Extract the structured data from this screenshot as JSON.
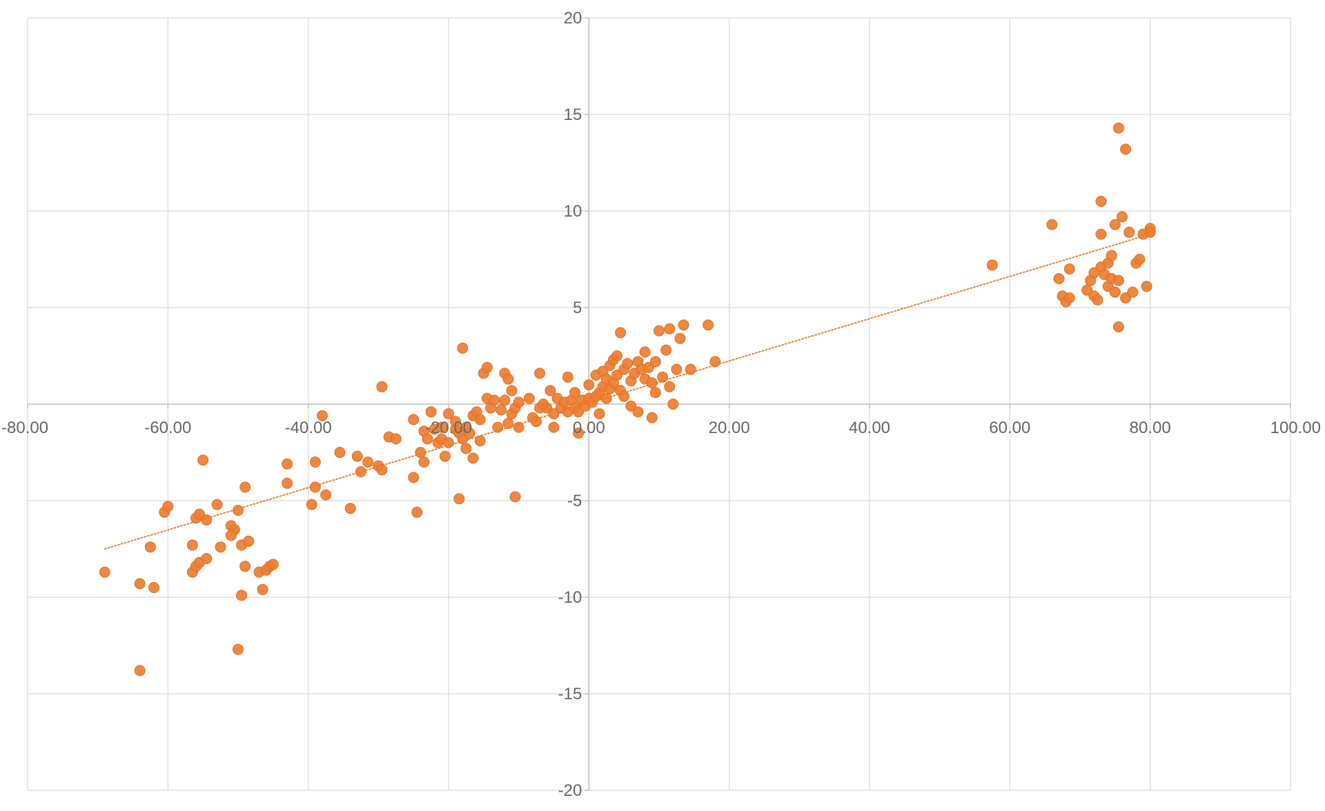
{
  "chart_data": {
    "type": "scatter",
    "title": "",
    "xlabel": "",
    "ylabel": "",
    "xlim": [
      -80,
      100
    ],
    "ylim": [
      -20,
      20
    ],
    "x_ticks": [
      -80,
      -60,
      -40,
      -20,
      0,
      20,
      40,
      60,
      80,
      100
    ],
    "x_tick_labels": [
      "-80.00",
      "-60.00",
      "-40.00",
      "-20.00",
      "0.00",
      "20.00",
      "40.00",
      "60.00",
      "80.00",
      "100.00"
    ],
    "y_ticks": [
      20,
      15,
      10,
      5,
      0,
      -5,
      -10,
      -15,
      -20
    ],
    "y_tick_labels": [
      "20",
      "15",
      "10",
      "5",
      "",
      "-5",
      "-10",
      "-15",
      "-20"
    ],
    "grid": true,
    "legend": "none",
    "colors": {
      "marker": "#ED7D31",
      "trendline": "#ED7D31",
      "grid": "#D9D9D9",
      "axis": "#BFBFBF",
      "tick_text": "#666666"
    },
    "trendline": {
      "type": "linear",
      "style": "dotted",
      "x": [
        -69,
        80
      ],
      "y": [
        -7.5,
        8.8
      ]
    },
    "series": [
      {
        "points": [
          [
            -69,
            -8.7
          ],
          [
            -64,
            -13.8
          ],
          [
            -64,
            -9.3
          ],
          [
            -62.5,
            -7.4
          ],
          [
            -62,
            -9.5
          ],
          [
            -60.5,
            -5.6
          ],
          [
            -60,
            -5.3
          ],
          [
            -56.5,
            -8.7
          ],
          [
            -56,
            -8.4
          ],
          [
            -55.5,
            -8.2
          ],
          [
            -56,
            -5.9
          ],
          [
            -55.5,
            -5.7
          ],
          [
            -56.5,
            -7.3
          ],
          [
            -55,
            -2.9
          ],
          [
            -54.5,
            -6
          ],
          [
            -54.5,
            -8
          ],
          [
            -53,
            -5.2
          ],
          [
            -52.5,
            -7.4
          ],
          [
            -51,
            -6.3
          ],
          [
            -50.5,
            -6.5
          ],
          [
            -51,
            -6.8
          ],
          [
            -50,
            -12.7
          ],
          [
            -50,
            -5.5
          ],
          [
            -49.5,
            -7.3
          ],
          [
            -49.5,
            -9.9
          ],
          [
            -49,
            -4.3
          ],
          [
            -48.5,
            -7.1
          ],
          [
            -49,
            -8.4
          ],
          [
            -47,
            -8.7
          ],
          [
            -46.5,
            -9.6
          ],
          [
            -46,
            -8.6
          ],
          [
            -45.5,
            -8.4
          ],
          [
            -45,
            -8.3
          ],
          [
            -43,
            -3.1
          ],
          [
            -43,
            -4.1
          ],
          [
            -39.5,
            -5.2
          ],
          [
            -39,
            -4.3
          ],
          [
            -39,
            -3
          ],
          [
            -38,
            -0.6
          ],
          [
            -37.5,
            -4.7
          ],
          [
            -35.5,
            -2.5
          ],
          [
            -34,
            -5.4
          ],
          [
            -33,
            -2.7
          ],
          [
            -32.5,
            -3.5
          ],
          [
            -31.5,
            -3
          ],
          [
            -30,
            -3.2
          ],
          [
            -29.5,
            -3.4
          ],
          [
            -29.5,
            0.9
          ],
          [
            -28.5,
            -1.7
          ],
          [
            -27.5,
            -1.8
          ],
          [
            -25,
            -0.8
          ],
          [
            -25,
            -3.8
          ],
          [
            -24.5,
            -5.6
          ],
          [
            -24,
            -2.5
          ],
          [
            -23.5,
            -1.4
          ],
          [
            -23.5,
            -3
          ],
          [
            -23,
            -1.8
          ],
          [
            -22.5,
            -0.4
          ],
          [
            -22,
            -1.3
          ],
          [
            -21.5,
            -2
          ],
          [
            -21,
            -1.8
          ],
          [
            -21,
            -1.2
          ],
          [
            -20,
            -2
          ],
          [
            -20.5,
            -2.7
          ],
          [
            -20,
            -0.5
          ],
          [
            -19,
            -1.3
          ],
          [
            -19,
            -0.9
          ],
          [
            -18.5,
            -1.5
          ],
          [
            -18.5,
            -4.9
          ],
          [
            -18,
            -1.8
          ],
          [
            -18,
            2.9
          ],
          [
            -17.5,
            -1.2
          ],
          [
            -17.5,
            -2.3
          ],
          [
            -17,
            -1.5
          ],
          [
            -16.5,
            -0.6
          ],
          [
            -16.5,
            -2.8
          ],
          [
            -16,
            -0.4
          ],
          [
            -15.5,
            -0.8
          ],
          [
            -15.5,
            -1.9
          ],
          [
            -15,
            1.6
          ],
          [
            -14.5,
            1.9
          ],
          [
            -14.5,
            0.3
          ],
          [
            -14,
            -0.2
          ],
          [
            -13.5,
            0.2
          ],
          [
            -13,
            -1.2
          ],
          [
            -12.5,
            -0.3
          ],
          [
            -12,
            0.2
          ],
          [
            -12,
            1.6
          ],
          [
            -11.5,
            1.3
          ],
          [
            -11.5,
            -1
          ],
          [
            -11,
            0.7
          ],
          [
            -11,
            -0.5
          ],
          [
            -10.5,
            -0.2
          ],
          [
            -10,
            0.1
          ],
          [
            -10.5,
            -4.8
          ],
          [
            -10,
            -1.2
          ],
          [
            -8.5,
            0.3
          ],
          [
            -8,
            -0.7
          ],
          [
            -7.5,
            -0.9
          ],
          [
            -7,
            -0.2
          ],
          [
            -7,
            1.6
          ],
          [
            -6.5,
            0
          ],
          [
            -6,
            -0.2
          ],
          [
            -5.5,
            0.7
          ],
          [
            -5,
            -0.5
          ],
          [
            -5,
            -1.2
          ],
          [
            -4.5,
            0.3
          ],
          [
            -4,
            -0.2
          ],
          [
            -3.5,
            0.1
          ],
          [
            -3,
            -0.4
          ],
          [
            -3,
            1.4
          ],
          [
            -2.5,
            0.2
          ],
          [
            -2,
            -0.2
          ],
          [
            -2,
            0.6
          ],
          [
            -1.5,
            -0.4
          ],
          [
            -1.5,
            -1.5
          ],
          [
            -1,
            0.2
          ],
          [
            -0.5,
            -0.1
          ],
          [
            0,
            0.3
          ],
          [
            0,
            1
          ],
          [
            0.5,
            0.1
          ],
          [
            1,
            0.4
          ],
          [
            1,
            1.5
          ],
          [
            1.5,
            0.6
          ],
          [
            1.5,
            -0.5
          ],
          [
            2,
            0.9
          ],
          [
            2,
            1.7
          ],
          [
            2.5,
            0.3
          ],
          [
            2.5,
            1.3
          ],
          [
            3,
            2
          ],
          [
            3,
            0.8
          ],
          [
            3.5,
            2.3
          ],
          [
            3.5,
            1.1
          ],
          [
            4,
            1.5
          ],
          [
            4,
            2.5
          ],
          [
            4.5,
            3.7
          ],
          [
            4.5,
            0.7
          ],
          [
            5,
            1.8
          ],
          [
            5,
            0.4
          ],
          [
            5.5,
            2.1
          ],
          [
            6,
            1.2
          ],
          [
            6,
            -0.1
          ],
          [
            6.5,
            1.6
          ],
          [
            7,
            2.2
          ],
          [
            7,
            -0.4
          ],
          [
            7.5,
            1.8
          ],
          [
            8,
            1.3
          ],
          [
            8,
            2.7
          ],
          [
            8.5,
            1.9
          ],
          [
            9,
            1.1
          ],
          [
            9,
            -0.7
          ],
          [
            9.5,
            2.2
          ],
          [
            9.5,
            0.6
          ],
          [
            10,
            3.8
          ],
          [
            10.5,
            1.4
          ],
          [
            11,
            2.8
          ],
          [
            11.5,
            3.9
          ],
          [
            11.5,
            0.9
          ],
          [
            12,
            0
          ],
          [
            12.5,
            1.8
          ],
          [
            13,
            3.4
          ],
          [
            13.5,
            4.1
          ],
          [
            14.5,
            1.8
          ],
          [
            17,
            4.1
          ],
          [
            18,
            2.2
          ],
          [
            57.5,
            7.2
          ],
          [
            66,
            9.3
          ],
          [
            67,
            6.5
          ],
          [
            67.5,
            5.6
          ],
          [
            68,
            5.3
          ],
          [
            68.5,
            5.5
          ],
          [
            68.5,
            7
          ],
          [
            71,
            5.9
          ],
          [
            71.5,
            6.4
          ],
          [
            72,
            6.8
          ],
          [
            72,
            5.6
          ],
          [
            72.5,
            5.4
          ],
          [
            73,
            7.1
          ],
          [
            73,
            8.8
          ],
          [
            73,
            10.5
          ],
          [
            73.5,
            6.7
          ],
          [
            74,
            6.1
          ],
          [
            74,
            7.3
          ],
          [
            74.5,
            7.7
          ],
          [
            74.5,
            6.5
          ],
          [
            75,
            5.8
          ],
          [
            75,
            9.3
          ],
          [
            75.5,
            6.4
          ],
          [
            75.5,
            4
          ],
          [
            75.5,
            14.3
          ],
          [
            76,
            9.7
          ],
          [
            76.5,
            13.2
          ],
          [
            76.5,
            5.5
          ],
          [
            77,
            8.9
          ],
          [
            77.5,
            5.8
          ],
          [
            78,
            7.3
          ],
          [
            78.5,
            7.5
          ],
          [
            79,
            8.8
          ],
          [
            79.5,
            6.1
          ],
          [
            80,
            9.1
          ],
          [
            80,
            8.9
          ]
        ]
      }
    ]
  }
}
